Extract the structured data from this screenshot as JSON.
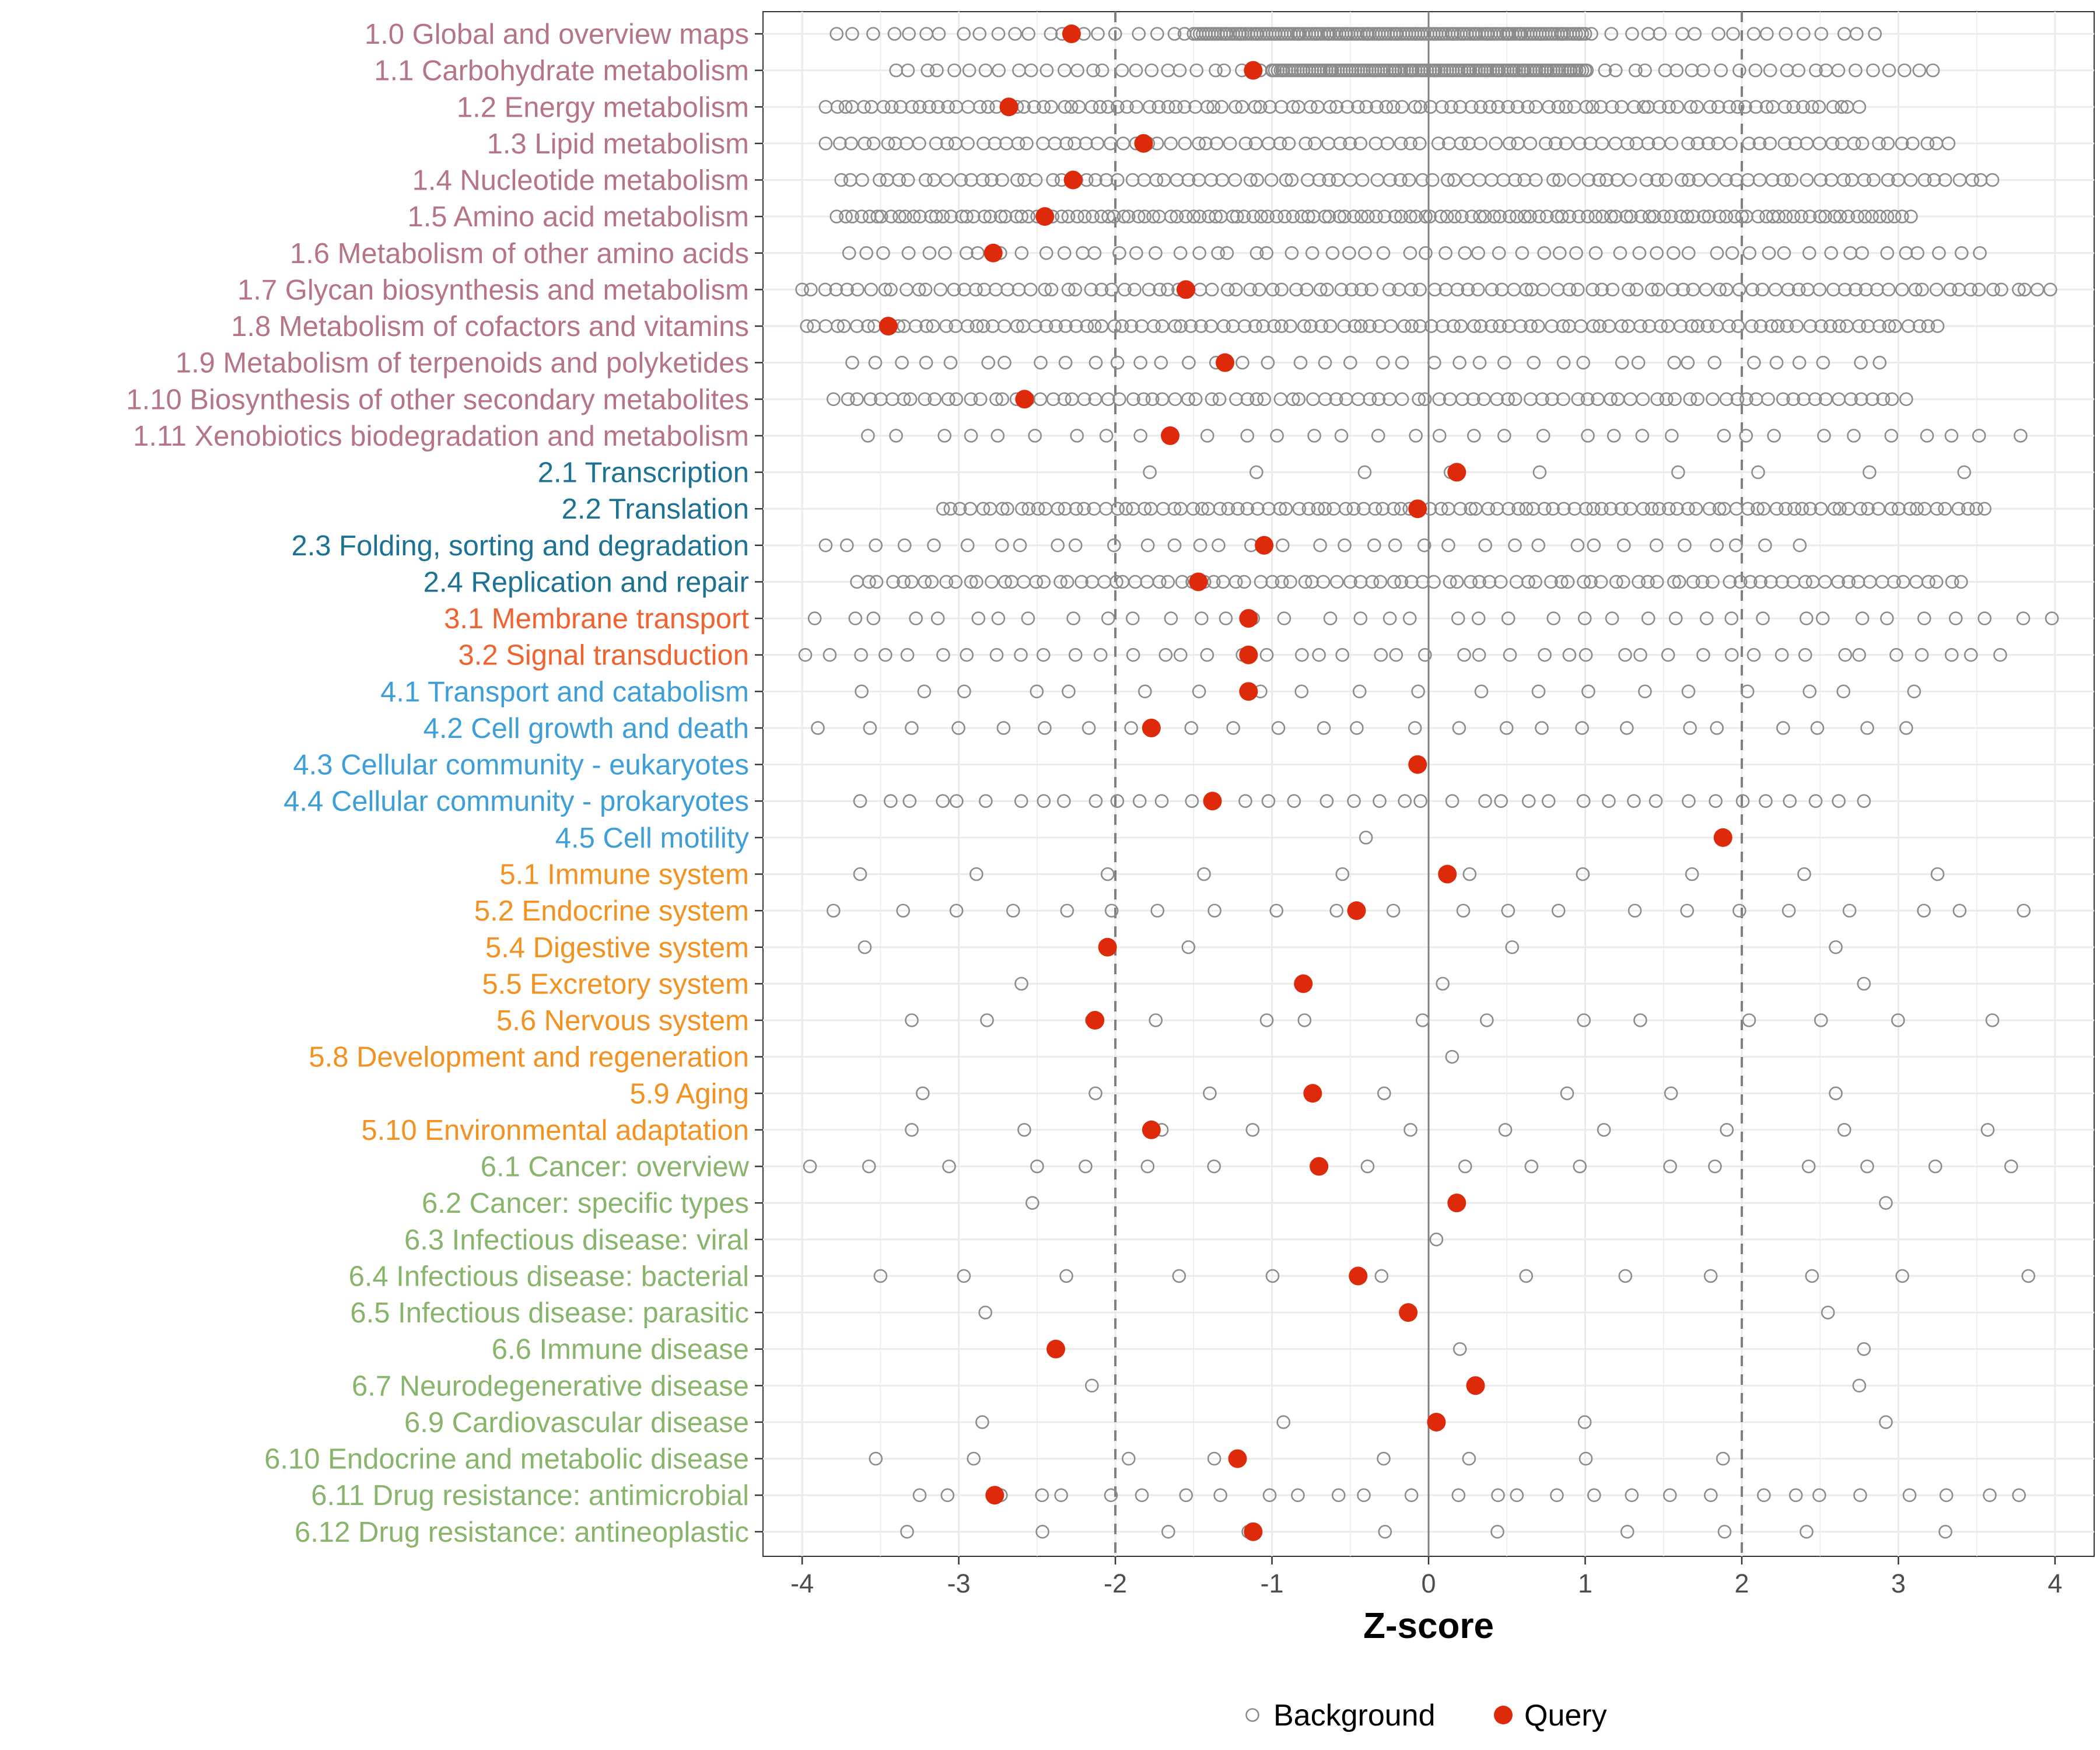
{
  "chart_data": {
    "type": "scatter",
    "xlabel": "Z-score",
    "ylabel": "",
    "xlim": [
      -4.25,
      4.25
    ],
    "x_ticks": [
      -4,
      -3,
      -2,
      -1,
      0,
      1,
      2,
      3,
      4
    ],
    "x_tick_labels": [
      "-4",
      "-3",
      "-2",
      "-1",
      "0",
      "1",
      "2",
      "3",
      "4"
    ],
    "reference_lines": {
      "solid": [
        0
      ],
      "dashed": [
        -2,
        2
      ]
    },
    "grid": true,
    "legend": {
      "position": "bottom",
      "entries": [
        {
          "label": "Background",
          "marker": "open-circle",
          "color": "#8c8c8c"
        },
        {
          "label": "Query",
          "marker": "filled-circle",
          "color": "#dc2a0a"
        }
      ]
    },
    "group_colors": {
      "1": "#b57585",
      "2": "#1d7293",
      "3": "#f0622f",
      "4": "#3e9fd8",
      "5": "#f39121",
      "6": "#88b46c"
    },
    "categories": [
      {
        "label": "1.0 Global and overview maps",
        "group": "1",
        "query": -2.28,
        "bg_range": [
          -3.78,
          2.85
        ],
        "bg_dense": [
          -1.5,
          1.0
        ],
        "bg_count": 190,
        "bg_dense_count": 130
      },
      {
        "label": "1.1 Carbohydrate metabolism",
        "group": "1",
        "query": -1.12,
        "bg_range": [
          -3.4,
          3.22
        ],
        "bg_dense": [
          -1.0,
          1.0
        ],
        "bg_count": 180,
        "bg_dense_count": 110
      },
      {
        "label": "1.2 Energy metabolism",
        "group": "1",
        "query": -2.68,
        "bg_range": [
          -3.85,
          2.75
        ],
        "bg_count": 110
      },
      {
        "label": "1.3 Lipid metabolism",
        "group": "1",
        "query": -1.82,
        "bg_range": [
          -3.85,
          3.32
        ],
        "bg_count": 95
      },
      {
        "label": "1.4 Nucleotide metabolism",
        "group": "1",
        "query": -2.27,
        "bg_range": [
          -3.75,
          3.6
        ],
        "bg_count": 100
      },
      {
        "label": "1.5 Amino acid metabolism",
        "group": "1",
        "query": -2.45,
        "bg_range": [
          -3.78,
          3.08
        ],
        "bg_count": 140
      },
      {
        "label": "1.6 Metabolism of other amino acids",
        "group": "1",
        "query": -2.78,
        "bg_range": [
          -3.7,
          3.52
        ],
        "bg_count": 60
      },
      {
        "label": "1.7 Glycan biosynthesis and metabolism",
        "group": "1",
        "query": -1.55,
        "bg_range": [
          -4.0,
          3.97
        ],
        "bg_count": 110
      },
      {
        "label": "1.8 Metabolism of cofactors and vitamins",
        "group": "1",
        "query": -3.45,
        "bg_range": [
          -3.97,
          3.25
        ],
        "bg_count": 115
      },
      {
        "label": "1.9 Metabolism of terpenoids and polyketides",
        "group": "1",
        "query": -1.3,
        "bg_range": [
          -3.68,
          2.88
        ],
        "bg_count": 40
      },
      {
        "label": "1.10 Biosynthesis of other secondary metabolites",
        "group": "1",
        "query": -2.58,
        "bg_range": [
          -3.8,
          3.05
        ],
        "bg_count": 95
      },
      {
        "label": "1.11 Xenobiotics biodegradation and metabolism",
        "group": "1",
        "query": -1.65,
        "bg_range": [
          -3.58,
          3.78
        ],
        "bg_count": 35
      },
      {
        "label": "2.1 Transcription",
        "group": "2",
        "query": 0.18,
        "bg_range": [
          -1.78,
          3.42
        ],
        "bg_count": 9
      },
      {
        "label": "2.2 Translation",
        "group": "2",
        "query": -0.07,
        "bg_range": [
          -3.1,
          3.55
        ],
        "bg_count": 110
      },
      {
        "label": "2.3 Folding, sorting and degradation",
        "group": "2",
        "query": -1.05,
        "bg_range": [
          -3.85,
          2.37
        ],
        "bg_count": 35
      },
      {
        "label": "2.4 Replication and repair",
        "group": "2",
        "query": -1.47,
        "bg_range": [
          -3.65,
          3.4
        ],
        "bg_count": 100
      },
      {
        "label": "3.1 Membrane transport",
        "group": "3",
        "query": -1.15,
        "bg_range": [
          -3.92,
          3.98
        ],
        "bg_count": 40
      },
      {
        "label": "3.2 Signal transduction",
        "group": "3",
        "query": -1.15,
        "bg_range": [
          -3.98,
          3.65
        ],
        "bg_count": 45
      },
      {
        "label": "4.1 Transport and catabolism",
        "group": "4",
        "query": -1.15,
        "bg_range": [
          -3.62,
          3.1
        ],
        "bg_count": 20
      },
      {
        "label": "4.2 Cell growth and death",
        "group": "4",
        "query": -1.77,
        "bg_range": [
          -3.9,
          3.05
        ],
        "bg_count": 25
      },
      {
        "label": "4.3 Cellular community - eukaryotes",
        "group": "4",
        "query": -0.07,
        "bg_range": [],
        "bg_count": 0
      },
      {
        "label": "4.4 Cellular community - prokaryotes",
        "group": "4",
        "query": -1.38,
        "bg_range": [
          -3.63,
          2.78
        ],
        "bg_count": 40
      },
      {
        "label": "4.5 Cell motility",
        "group": "4",
        "query": 1.88,
        "bg_range": [
          -0.4,
          -0.4
        ],
        "bg_count": 1
      },
      {
        "label": "5.1 Immune system",
        "group": "5",
        "query": 0.12,
        "bg_range": [
          -3.63,
          3.25
        ],
        "bg_count": 10
      },
      {
        "label": "5.2 Endocrine system",
        "group": "5",
        "query": -0.46,
        "bg_range": [
          -3.8,
          3.8
        ],
        "bg_count": 22
      },
      {
        "label": "5.4 Digestive system",
        "group": "5",
        "query": -2.05,
        "bg_range": [
          -3.6,
          2.6
        ],
        "bg_count": 4
      },
      {
        "label": "5.5 Excretory system",
        "group": "5",
        "query": -0.8,
        "bg_range": [
          -2.6,
          2.78
        ],
        "bg_count": 3
      },
      {
        "label": "5.6 Nervous system",
        "group": "5",
        "query": -2.13,
        "bg_range": [
          -3.3,
          3.6
        ],
        "bg_count": 14
      },
      {
        "label": "5.8 Development and regeneration",
        "group": "5",
        "query": null,
        "bg_range": [
          0.15,
          0.15
        ],
        "bg_count": 1
      },
      {
        "label": "5.9 Aging",
        "group": "5",
        "query": -0.74,
        "bg_range": [
          -3.23,
          2.6
        ],
        "bg_count": 7
      },
      {
        "label": "5.10 Environmental adaptation",
        "group": "5",
        "query": -1.77,
        "bg_range": [
          -3.3,
          3.57
        ],
        "bg_count": 10
      },
      {
        "label": "6.1 Cancer: overview",
        "group": "6",
        "query": -0.7,
        "bg_range": [
          -3.95,
          3.72
        ],
        "bg_count": 18
      },
      {
        "label": "6.2 Cancer: specific types",
        "group": "6",
        "query": 0.18,
        "bg_range": [
          -2.53,
          2.92
        ],
        "bg_count": 2
      },
      {
        "label": "6.3 Infectious disease: viral",
        "group": "6",
        "query": null,
        "bg_range": [
          0.05,
          0.05
        ],
        "bg_count": 1
      },
      {
        "label": "6.4 Infectious disease: bacterial",
        "group": "6",
        "query": -0.45,
        "bg_range": [
          -3.5,
          3.83
        ],
        "bg_count": 12
      },
      {
        "label": "6.5 Infectious disease: parasitic",
        "group": "6",
        "query": -0.13,
        "bg_range": [
          -2.83,
          2.55
        ],
        "bg_count": 2
      },
      {
        "label": "6.6 Immune disease",
        "group": "6",
        "query": -2.38,
        "bg_range": [
          0.2,
          2.78
        ],
        "bg_count": 2
      },
      {
        "label": "6.7 Neurodegenerative disease",
        "group": "6",
        "query": 0.3,
        "bg_range": [
          -2.15,
          2.75
        ],
        "bg_count": 2
      },
      {
        "label": "6.9 Cardiovascular disease",
        "group": "6",
        "query": 0.05,
        "bg_range": [
          -2.85,
          2.92
        ],
        "bg_count": 4
      },
      {
        "label": "6.10 Endocrine and metabolic disease",
        "group": "6",
        "query": -1.22,
        "bg_range": [
          -3.53,
          1.88
        ],
        "bg_count": 8
      },
      {
        "label": "6.11 Drug resistance: antimicrobial",
        "group": "6",
        "query": -2.77,
        "bg_range": [
          -3.25,
          3.77
        ],
        "bg_count": 30
      },
      {
        "label": "6.12 Drug resistance: antineoplastic",
        "group": "6",
        "query": -1.12,
        "bg_range": [
          -3.33,
          3.3
        ],
        "bg_count": 10
      }
    ]
  }
}
